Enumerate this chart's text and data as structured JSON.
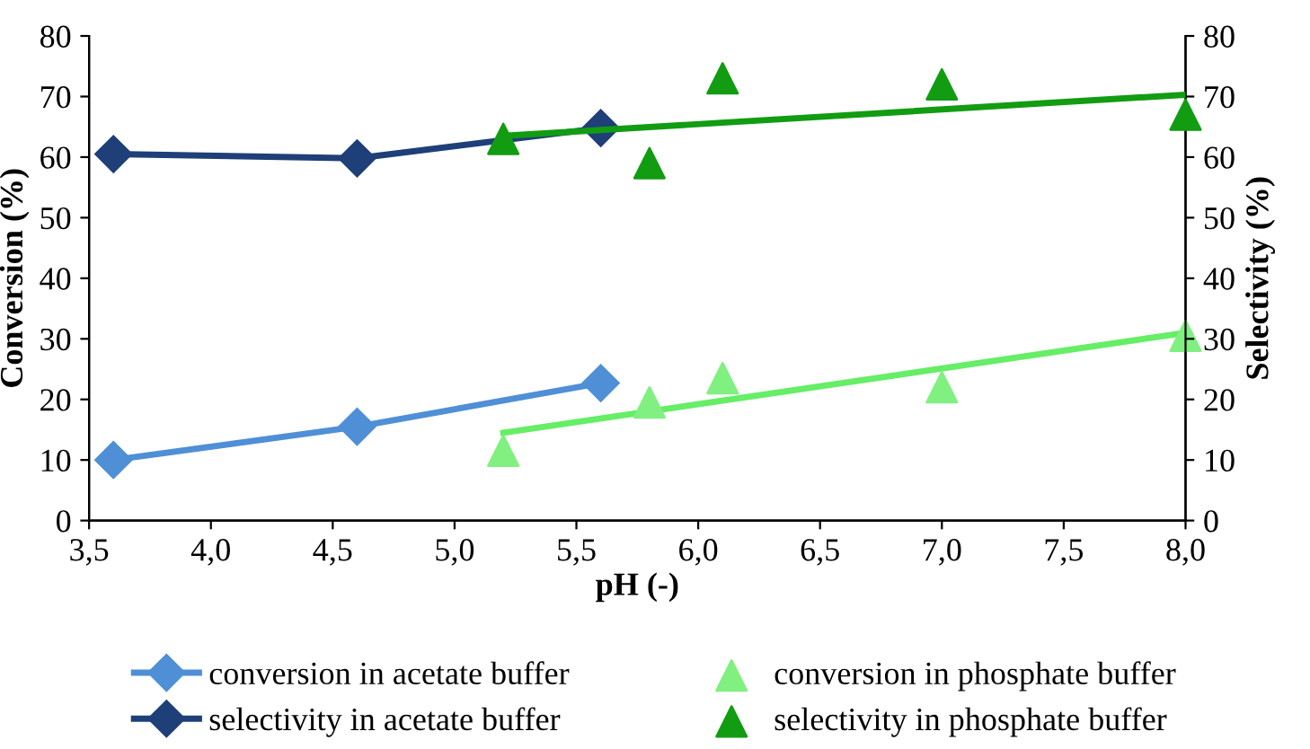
{
  "chart_data": {
    "type": "scatter",
    "xlabel": "pH (-)",
    "ylabel": "Conversion (%)",
    "y2label": "Selectivity (%)",
    "xlim": [
      3.5,
      8.0
    ],
    "xticks": [
      {
        "value": 3.5,
        "label": "3,5"
      },
      {
        "value": 4.0,
        "label": "4,0"
      },
      {
        "value": 4.5,
        "label": "4,5"
      },
      {
        "value": 5.0,
        "label": "5,0"
      },
      {
        "value": 5.5,
        "label": "5,5"
      },
      {
        "value": 6.0,
        "label": "6,0"
      },
      {
        "value": 6.5,
        "label": "6,5"
      },
      {
        "value": 7.0,
        "label": "7,0"
      },
      {
        "value": 7.5,
        "label": "7,5"
      },
      {
        "value": 8.0,
        "label": "8,0"
      }
    ],
    "ylim": [
      0,
      80
    ],
    "yticks": [
      0,
      10,
      20,
      30,
      40,
      50,
      60,
      70,
      80
    ],
    "y2lim": [
      0,
      80
    ],
    "y2ticks": [
      0,
      10,
      20,
      30,
      40,
      50,
      60,
      70,
      80
    ],
    "grid": false,
    "legend": "bottom",
    "series": [
      {
        "name": "conversion in acetate buffer",
        "type": "line",
        "marker": "diamond",
        "color": "#4f8fd6",
        "x": [
          3.6,
          4.6,
          5.6
        ],
        "values": [
          10,
          15.5,
          22.7
        ]
      },
      {
        "name": "conversion in phosphate buffer",
        "marker": "triangle",
        "color": "#80f080",
        "x": [
          5.2,
          5.8,
          6.1,
          7.0,
          8.0
        ],
        "values": [
          11.5,
          19.5,
          23.5,
          22,
          30.5
        ]
      },
      {
        "name": "selectivity in acetate buffer",
        "type": "line",
        "marker": "diamond",
        "color": "#1f3f78",
        "axis": "y2",
        "x": [
          3.6,
          4.6,
          5.6
        ],
        "values": [
          60.5,
          59.8,
          64.8
        ]
      },
      {
        "name": "selectivity in phosphate buffer",
        "marker": "triangle",
        "color": "#129c12",
        "axis": "y2",
        "x": [
          5.2,
          5.8,
          6.1,
          7.0,
          8.0
        ],
        "values": [
          63,
          59,
          73,
          72,
          67
        ]
      },
      {
        "type": "line",
        "marker": "none",
        "color": "#66ee66",
        "x": [
          5.2,
          8.0
        ],
        "values": [
          14.5,
          31
        ]
      },
      {
        "type": "line",
        "marker": "none",
        "color": "#129c12",
        "axis": "y2",
        "x": [
          5.2,
          8.0
        ],
        "values": [
          63.5,
          70.3
        ]
      }
    ]
  }
}
